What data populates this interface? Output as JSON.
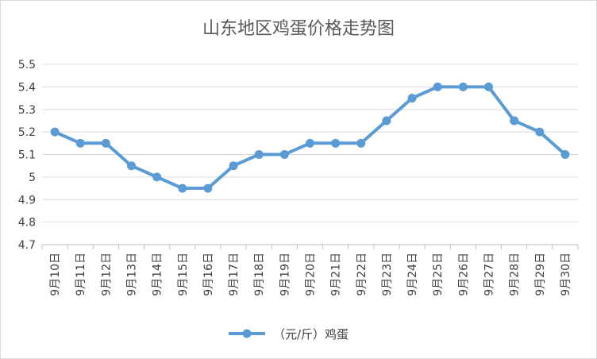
{
  "chart_data": {
    "type": "line",
    "title": "山东地区鸡蛋价格走势图",
    "categories": [
      "9月10日",
      "9月11日",
      "9月12日",
      "9月13日",
      "9月14日",
      "9月15日",
      "9月16日",
      "9月17日",
      "9月18日",
      "9月19日",
      "9月20日",
      "9月21日",
      "9月22日",
      "9月23日",
      "9月24日",
      "9月25日",
      "9月26日",
      "9月27日",
      "9月28日",
      "9月29日",
      "9月30日"
    ],
    "series": [
      {
        "name": "（元/斤）鸡蛋",
        "values": [
          5.2,
          5.15,
          5.15,
          5.05,
          5.0,
          4.95,
          4.95,
          5.05,
          5.1,
          5.1,
          5.15,
          5.15,
          5.15,
          5.25,
          5.35,
          5.4,
          5.4,
          5.4,
          5.25,
          5.2,
          5.1
        ],
        "color": "#5b9bd5"
      }
    ],
    "ylim": [
      4.7,
      5.5
    ],
    "yticks": [
      "5.5",
      "5.4",
      "5.3",
      "5.2",
      "5.1",
      "5",
      "4.9",
      "4.8",
      "4.7"
    ],
    "grid": true,
    "legend_position": "bottom",
    "colors": {
      "gridline": "#d9d9d9",
      "axis": "#bfbfbf",
      "title": "#595959",
      "text": "#404040"
    }
  }
}
